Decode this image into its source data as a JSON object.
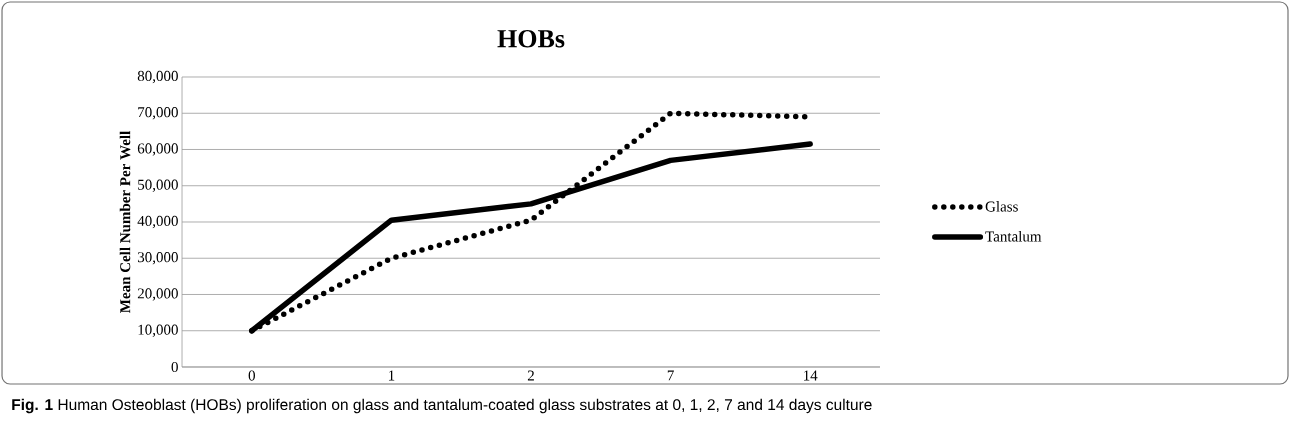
{
  "chart_data": {
    "type": "line",
    "title": "HOBs",
    "ylabel": "Mean Cell Number Per Well",
    "categories": [
      "0",
      "1",
      "2",
      "7",
      "14"
    ],
    "series": [
      {
        "name": "Glass",
        "color": "#000000",
        "line_style": "dotted",
        "values": [
          10000,
          30000,
          40500,
          70000,
          69000
        ]
      },
      {
        "name": "Tantalum",
        "color": "#000000",
        "line_style": "solid",
        "values": [
          10000,
          40500,
          45000,
          57000,
          61500
        ]
      }
    ],
    "ylim": [
      0,
      80000
    ],
    "yticks": [
      {
        "value": 0,
        "label": "0"
      },
      {
        "value": 10000,
        "label": "10,000"
      },
      {
        "value": 20000,
        "label": "20,000"
      },
      {
        "value": 30000,
        "label": "30,000"
      },
      {
        "value": 40000,
        "label": "40,000"
      },
      {
        "value": 50000,
        "label": "50,000"
      },
      {
        "value": 60000,
        "label": "60,000"
      },
      {
        "value": 70000,
        "label": "70,000"
      },
      {
        "value": 80000,
        "label": "80,000"
      }
    ],
    "grid": "y",
    "legend": "right",
    "marker": "none",
    "annotations": [
      "**Fig. 1** Human Osteoblast (HOBs) proliferation on glass and tantalum-coated glass substrates at 0, 1, 2, 7 and 14 days culture"
    ]
  }
}
